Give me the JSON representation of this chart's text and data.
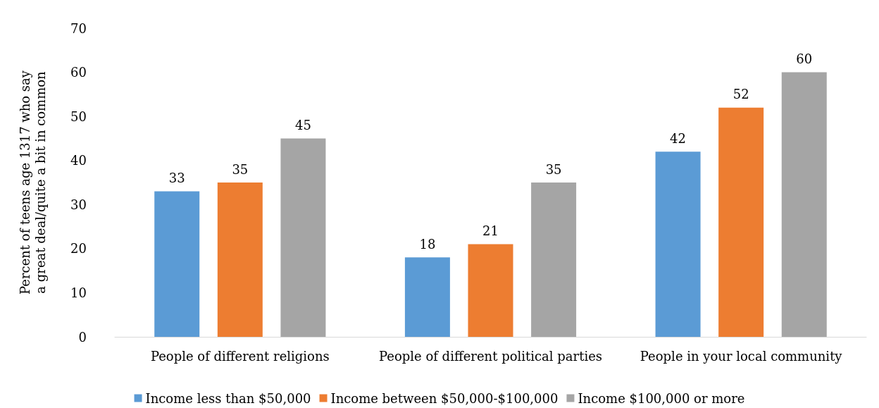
{
  "chart_data": {
    "type": "bar",
    "ylabel": "Percent of teens age 1317 who say\na great deal/quite a bit in common",
    "categories": [
      "People of different religions",
      "People of different political parties",
      "People in your local community"
    ],
    "series": [
      {
        "name": "Income less than $50,000",
        "color": "#5b9bd5",
        "values": [
          33,
          18,
          42
        ]
      },
      {
        "name": "Income between $50,000-$100,000",
        "color": "#ed7d31",
        "values": [
          35,
          21,
          52
        ]
      },
      {
        "name": "Income $100,000 or more",
        "color": "#a5a5a5",
        "values": [
          45,
          35,
          60
        ]
      }
    ],
    "ylim": [
      0,
      70
    ],
    "yticks": [
      0,
      10,
      20,
      30,
      40,
      50,
      60,
      70
    ],
    "grid": false,
    "legend": "bottom",
    "data_labels": true
  }
}
